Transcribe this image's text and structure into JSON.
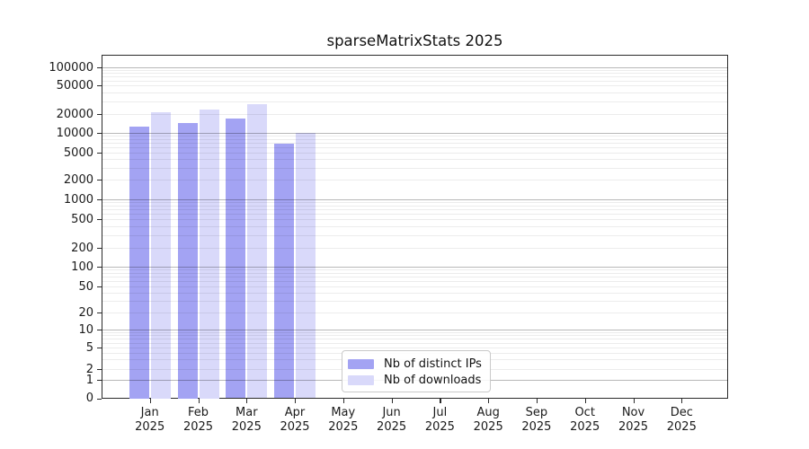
{
  "chart_data": {
    "type": "bar",
    "title": "sparseMatrixStats 2025",
    "categories": [
      "Jan",
      "Feb",
      "Mar",
      "Apr",
      "May",
      "Jun",
      "Jul",
      "Aug",
      "Sep",
      "Oct",
      "Nov",
      "Dec"
    ],
    "year_label": "2025",
    "series": [
      {
        "name": "Nb of distinct IPs",
        "color": "#a3a3f3",
        "values": [
          12600,
          14400,
          16800,
          6900,
          null,
          null,
          null,
          null,
          null,
          null,
          null,
          null
        ]
      },
      {
        "name": "Nb of downloads",
        "color": "#d9d9fa",
        "values": [
          21200,
          23100,
          27200,
          10100,
          null,
          null,
          null,
          null,
          null,
          null,
          null,
          null
        ]
      }
    ],
    "xlabel": "",
    "ylabel": "",
    "yscale": "symlog",
    "yticks": [
      0,
      1,
      2,
      5,
      10,
      20,
      50,
      100,
      200,
      500,
      1000,
      2000,
      5000,
      10000,
      20000,
      50000,
      100000
    ],
    "ylim": [
      0,
      180000
    ],
    "grid": "horizontal major and minor log gridlines",
    "legend_position": "inside bottom-center"
  }
}
